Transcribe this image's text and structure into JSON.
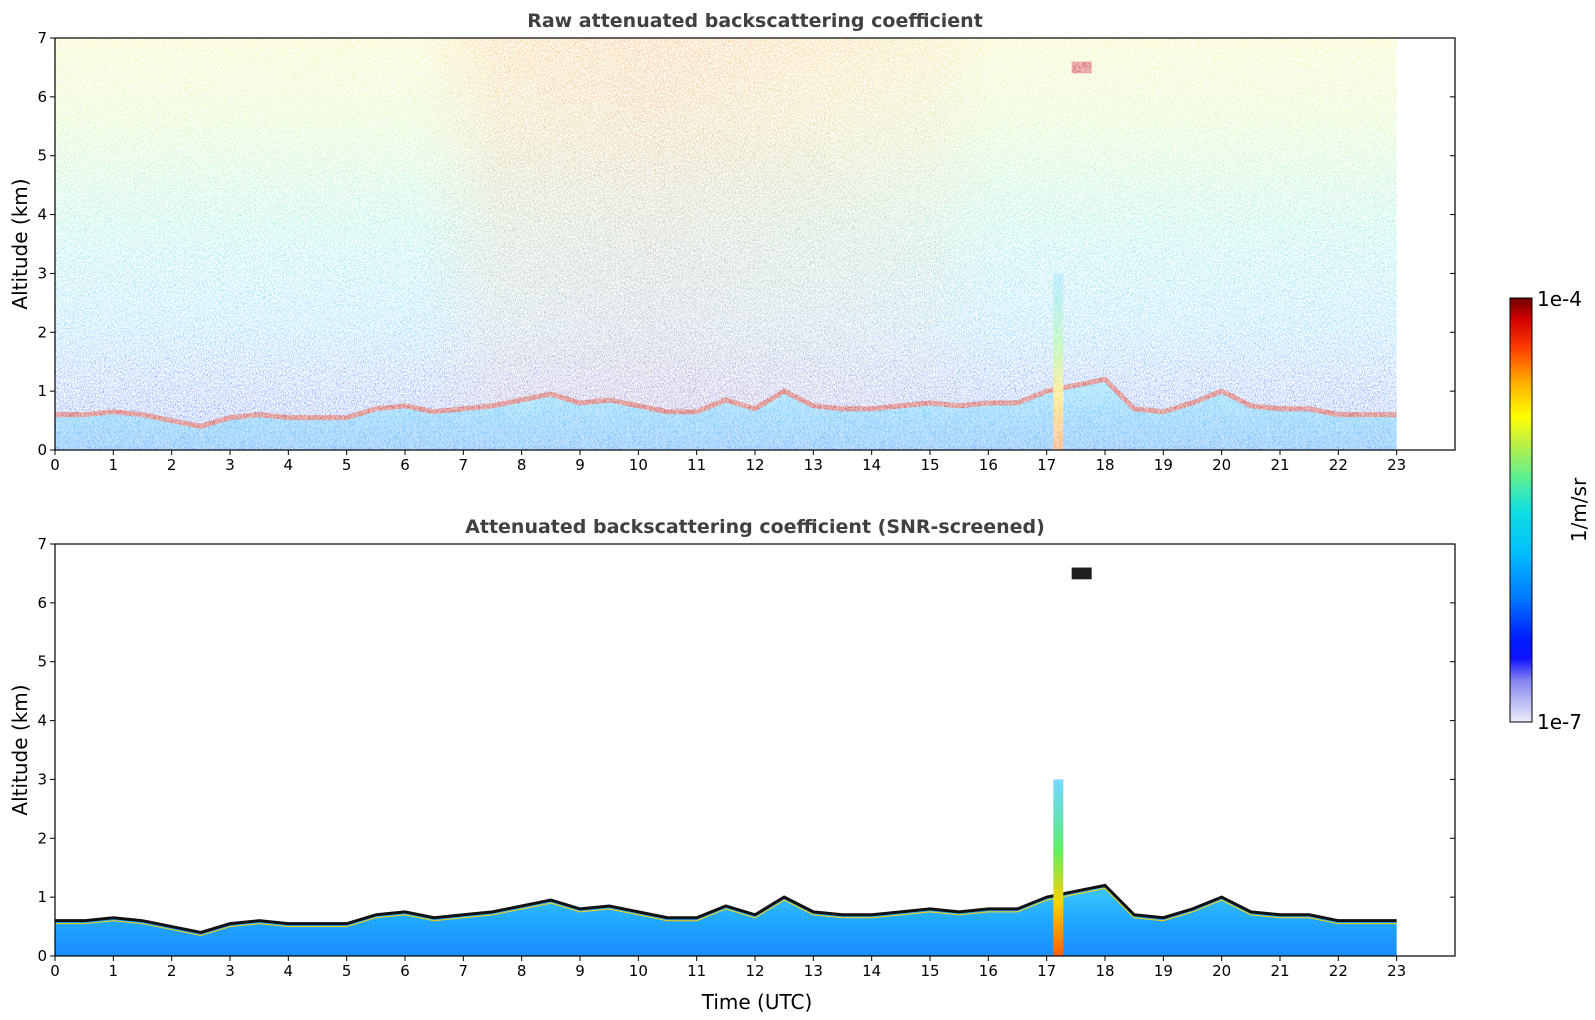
{
  "chart_data": [
    {
      "type": "heatmap",
      "title": "Raw attenuated backscattering coefficient",
      "xlabel": "",
      "ylabel": "Altitude (km)",
      "xlim": [
        0,
        24
      ],
      "ylim": [
        0,
        7
      ],
      "xticks": [
        0,
        1,
        2,
        3,
        4,
        5,
        6,
        7,
        8,
        9,
        10,
        11,
        12,
        13,
        14,
        15,
        16,
        17,
        18,
        19,
        20,
        21,
        22,
        23
      ],
      "yticks": [
        0,
        1,
        2,
        3,
        4,
        5,
        6,
        7
      ],
      "data_end_hour": 23,
      "layer_top_km": [
        [
          0,
          0.6
        ],
        [
          0.5,
          0.6
        ],
        [
          1,
          0.65
        ],
        [
          1.5,
          0.6
        ],
        [
          2,
          0.5
        ],
        [
          2.5,
          0.4
        ],
        [
          3,
          0.55
        ],
        [
          3.5,
          0.6
        ],
        [
          4,
          0.55
        ],
        [
          4.5,
          0.55
        ],
        [
          5,
          0.55
        ],
        [
          5.5,
          0.7
        ],
        [
          6,
          0.75
        ],
        [
          6.5,
          0.65
        ],
        [
          7,
          0.7
        ],
        [
          7.5,
          0.75
        ],
        [
          8,
          0.85
        ],
        [
          8.5,
          0.95
        ],
        [
          9,
          0.8
        ],
        [
          9.5,
          0.85
        ],
        [
          10,
          0.75
        ],
        [
          10.5,
          0.65
        ],
        [
          11,
          0.65
        ],
        [
          11.5,
          0.85
        ],
        [
          12,
          0.7
        ],
        [
          12.5,
          1.0
        ],
        [
          13,
          0.75
        ],
        [
          13.5,
          0.7
        ],
        [
          14,
          0.7
        ],
        [
          14.5,
          0.75
        ],
        [
          15,
          0.8
        ],
        [
          15.5,
          0.75
        ],
        [
          16,
          0.8
        ],
        [
          16.5,
          0.8
        ],
        [
          17,
          1.0
        ],
        [
          17.5,
          1.1
        ],
        [
          18,
          1.2
        ],
        [
          18.5,
          0.7
        ],
        [
          19,
          0.65
        ],
        [
          19.5,
          0.8
        ],
        [
          20,
          1.0
        ],
        [
          20.5,
          0.75
        ],
        [
          21,
          0.7
        ],
        [
          21.5,
          0.7
        ],
        [
          22,
          0.6
        ],
        [
          22.5,
          0.6
        ],
        [
          23,
          0.6
        ]
      ],
      "features": [
        {
          "name": "plume",
          "x_hour": 17.2,
          "alt_km": [
            0,
            3.0
          ]
        },
        {
          "name": "elevated-layer",
          "x_hour": 17.6,
          "alt_km": [
            6.4,
            6.6
          ]
        }
      ]
    },
    {
      "type": "heatmap",
      "title": "Attenuated backscattering coefficient (SNR-screened)",
      "xlabel": "Time (UTC)",
      "ylabel": "Altitude (km)",
      "xlim": [
        0,
        24
      ],
      "ylim": [
        0,
        7
      ],
      "xticks": [
        0,
        1,
        2,
        3,
        4,
        5,
        6,
        7,
        8,
        9,
        10,
        11,
        12,
        13,
        14,
        15,
        16,
        17,
        18,
        19,
        20,
        21,
        22,
        23
      ],
      "yticks": [
        0,
        1,
        2,
        3,
        4,
        5,
        6,
        7
      ]
    }
  ],
  "colorbar": {
    "label": "1/m/sr",
    "max_label": "1e-4",
    "min_label": "1e-7",
    "colors": [
      "#e0e0f8",
      "#b4b4f4",
      "#8080f0",
      "#0000ff",
      "#0040ff",
      "#0080ff",
      "#00b0ff",
      "#00d8f0",
      "#20f0c0",
      "#80ff80",
      "#c0ff40",
      "#ffff00",
      "#ffc000",
      "#ff8000",
      "#ff4000",
      "#e00000",
      "#800000"
    ]
  }
}
